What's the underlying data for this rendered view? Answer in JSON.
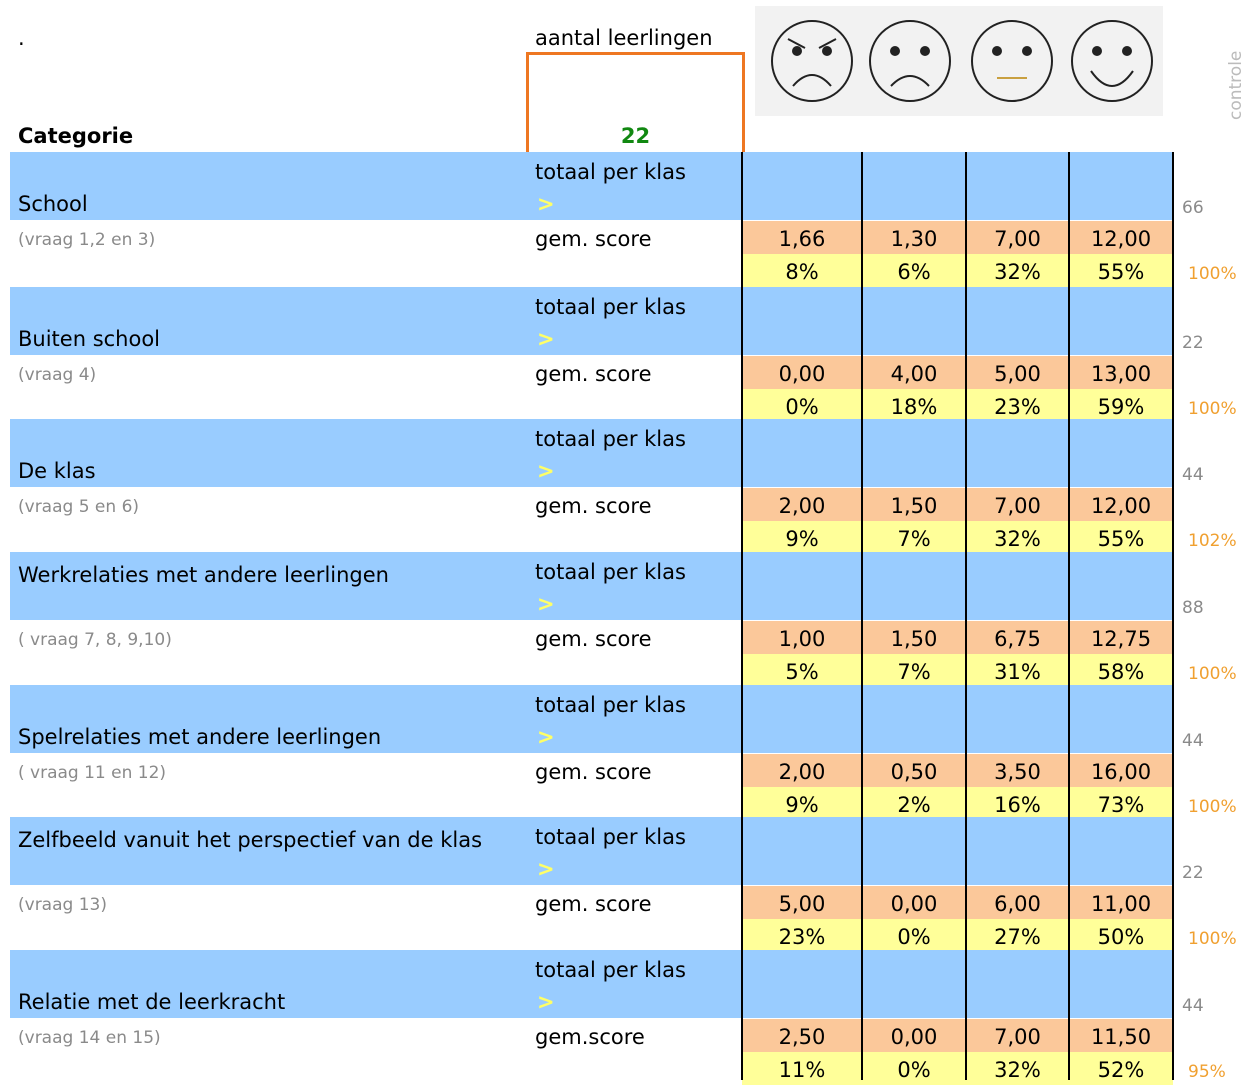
{
  "header": {
    "dot": ".",
    "count_label": "aantal leerlingen",
    "count": "22",
    "category": "Categorie",
    "control": "controle"
  },
  "sections": [
    {
      "name": "School",
      "note": "(vraag 1,2 en 3)",
      "total_label": "totaal per klas",
      "arrow": ">",
      "score_label": "gem. score",
      "scores": [
        "1,66",
        "1,30",
        "7,00",
        "12,00"
      ],
      "percents": [
        "8%",
        "6%",
        "32%",
        "55%"
      ],
      "control_total": "66",
      "control_pct": "100%"
    },
    {
      "name": "Buiten school",
      "note": "(vraag 4)",
      "total_label": "totaal per klas",
      "arrow": ">",
      "score_label": "gem. score",
      "scores": [
        "0,00",
        "4,00",
        "5,00",
        "13,00"
      ],
      "percents": [
        "0%",
        "18%",
        "23%",
        "59%"
      ],
      "control_total": "22",
      "control_pct": "100%"
    },
    {
      "name": "De klas",
      "note": "(vraag 5 en 6)",
      "total_label": "totaal per klas",
      "arrow": ">",
      "score_label": "gem. score",
      "scores": [
        "2,00",
        "1,50",
        "7,00",
        "12,00"
      ],
      "percents": [
        "9%",
        "7%",
        "32%",
        "55%"
      ],
      "control_total": "44",
      "control_pct": "102%"
    },
    {
      "name": "Werkrelaties met andere leerlingen",
      "note": "( vraag 7, 8, 9,10)",
      "total_label": "totaal per klas",
      "arrow": ">",
      "score_label": "gem. score",
      "scores": [
        "1,00",
        "1,50",
        "6,75",
        "12,75"
      ],
      "percents": [
        "5%",
        "7%",
        "31%",
        "58%"
      ],
      "control_total": "88",
      "control_pct": "100%"
    },
    {
      "name": "Spelrelaties met andere leerlingen",
      "note": "( vraag 11 en 12)",
      "total_label": "totaal per klas",
      "arrow": ">",
      "score_label": "gem. score",
      "scores": [
        "2,00",
        "0,50",
        "3,50",
        "16,00"
      ],
      "percents": [
        "9%",
        "2%",
        "16%",
        "73%"
      ],
      "control_total": "44",
      "control_pct": "100%"
    },
    {
      "name": "Zelfbeeld vanuit het perspectief van de klas",
      "note": " (vraag 13)",
      "total_label": "totaal per klas",
      "arrow": ">",
      "score_label": "gem. score",
      "scores": [
        "5,00",
        "0,00",
        "6,00",
        "11,00"
      ],
      "percents": [
        "23%",
        "0%",
        "27%",
        "50%"
      ],
      "control_total": "22",
      "control_pct": "100%"
    },
    {
      "name": "Relatie met de leerkracht",
      "note": "(vraag 14 en 15)",
      "total_label": "totaal per klas",
      "arrow": ">",
      "score_label": "gem.score",
      "scores": [
        "2,50",
        "0,00",
        "7,00",
        "11,50"
      ],
      "percents": [
        "11%",
        "0%",
        "32%",
        "52%"
      ],
      "control_total": "44",
      "control_pct": "95%"
    }
  ]
}
